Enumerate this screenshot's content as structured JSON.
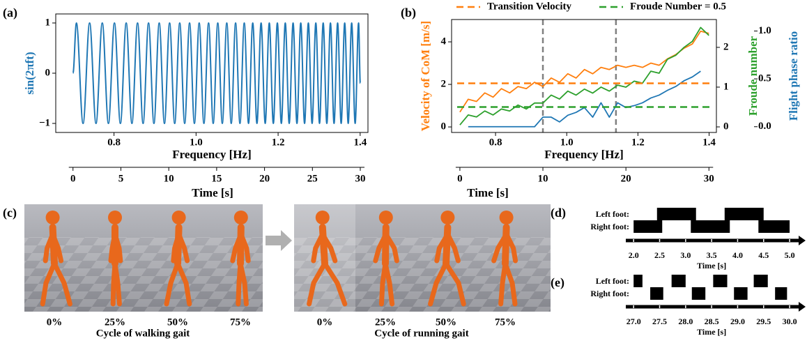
{
  "panel_labels": [
    "(a)",
    "(b)",
    "(c)",
    "(d)",
    "(e)"
  ],
  "gait_frames": [
    {
      "labels": [
        "0%",
        "25%",
        "50%",
        "75%"
      ],
      "caption": "Cycle of walking gait"
    },
    {
      "labels": [
        "0%",
        "25%",
        "50%",
        "75%"
      ],
      "caption": "Cycle of running gait"
    }
  ],
  "chart_data": [
    {
      "type": "line",
      "smooth": true,
      "xlabel": "Frequency [Hz]",
      "time_label": "Time [s]",
      "ylabel": "sin(2πft)",
      "ylabel_color": "#1f77b4",
      "xlim": [
        -1.8,
        30.8
      ],
      "xticks": [
        0,
        5,
        10,
        15,
        20,
        25,
        30
      ],
      "freq_lim": [
        0.658,
        1.419
      ],
      "freq_ticks": [
        0.8,
        {
          "value": 1.0,
          "label": "1.0"
        },
        1.2,
        1.4
      ],
      "ylim": [
        -1.18,
        1.18
      ],
      "yticks": [
        {
          "value": -1,
          "label": "−1"
        },
        0,
        1
      ],
      "x": [
        0,
        0.355,
        1.053,
        1.736,
        2.404,
        3.058,
        3.7,
        4.33,
        4.949,
        5.557,
        6.154,
        6.742,
        7.321,
        7.891,
        8.452,
        9.005,
        9.551,
        10.089,
        10.62,
        11.144,
        11.662,
        12.173,
        12.678,
        13.177,
        13.671,
        14.159,
        14.641,
        15.119,
        15.591,
        16.059,
        16.522,
        16.98,
        17.434,
        17.884,
        18.329,
        18.771,
        19.208,
        19.642,
        20.071,
        20.498,
        20.92,
        21.339,
        21.755,
        22.167,
        22.577,
        22.982,
        23.385,
        23.785,
        24.182,
        24.576,
        24.968,
        25.356,
        25.742,
        26.125,
        26.505,
        26.883,
        27.259,
        27.632,
        28.002,
        28.371,
        28.737,
        29.1,
        29.462,
        29.821,
        30
      ],
      "series": [
        {
          "color": "#1f77b4",
          "values": [
            0,
            1,
            -1,
            1,
            -1,
            1,
            -1,
            1,
            -1,
            1,
            -1,
            1,
            -1,
            1,
            -1,
            1,
            -1,
            1,
            -1,
            1,
            -1,
            1,
            -1,
            1,
            -1,
            1,
            -1,
            1,
            -1,
            1,
            -1,
            1,
            -1,
            1,
            -1,
            1,
            -1,
            1,
            -1,
            1,
            -1,
            1,
            -1,
            1,
            -1,
            1,
            -1,
            1,
            -1,
            1,
            -1,
            1,
            -1,
            1,
            -1,
            1,
            -1,
            1,
            -1,
            1,
            -1,
            1,
            -1,
            1,
            -0.2
          ]
        }
      ]
    },
    {
      "type": "line",
      "smooth": false,
      "xlabel": "Frequency [Hz]",
      "time_label": "Time [s]",
      "xlim": [
        -1.0,
        30.9
      ],
      "xticks": [
        0,
        10,
        20,
        30
      ],
      "freq_lim": [
        0.6765,
        1.4205
      ],
      "freq_ticks": [
        0.8,
        {
          "value": 1.0,
          "label": "1.0"
        },
        1.2,
        1.4
      ],
      "ylabel": "Velocity of CoM [m/s]",
      "ylabel_color": "#ff7f0e",
      "ylim": [
        -0.26,
        5.05
      ],
      "yticks": [
        0,
        2,
        4
      ],
      "y2label": "Froude number",
      "y2label_color": "#2ca02c",
      "y2lim": [
        -0.14,
        2.7
      ],
      "y2ticks": [
        0,
        1,
        2
      ],
      "y3label": "Flight phase ratio",
      "y3label_color": "#1f77b4",
      "y3lim": [
        -0.06,
        1.12
      ],
      "y3ticks": [
        {
          "value": 0.0,
          "label": "0.0"
        },
        0.5,
        {
          "value": 1.0,
          "label": "1.0"
        }
      ],
      "x": [
        0,
        1,
        2,
        3,
        4,
        5,
        6,
        7,
        8,
        9,
        10,
        11,
        12,
        13,
        14,
        15,
        16,
        17,
        18,
        19,
        20,
        21,
        22,
        23,
        24,
        25,
        26,
        27,
        28,
        29,
        30
      ],
      "series": [
        {
          "color": "#ff7f0e",
          "axis": "y",
          "values": [
            0.7,
            1.3,
            1.2,
            1.6,
            1.4,
            1.8,
            1.6,
            1.9,
            1.8,
            2.1,
            1.9,
            2.3,
            2.1,
            2.5,
            2.3,
            2.7,
            2.5,
            2.8,
            2.7,
            2.9,
            2.8,
            2.9,
            2.8,
            3.0,
            2.9,
            3.2,
            3.4,
            3.7,
            3.9,
            4.5,
            4.4
          ]
        },
        {
          "color": "#2ca02c",
          "axis": "y2",
          "values": [
            0.05,
            0.3,
            0.25,
            0.4,
            0.3,
            0.45,
            0.4,
            0.55,
            0.45,
            0.6,
            0.6,
            0.8,
            0.7,
            0.9,
            0.8,
            0.95,
            0.85,
            1.0,
            0.9,
            1.05,
            1.0,
            1.15,
            1.1,
            1.4,
            1.35,
            1.7,
            1.8,
            2.0,
            2.15,
            2.5,
            2.3
          ]
        },
        {
          "color": "#1f77b4",
          "axis": "y3",
          "values": [
            null,
            0,
            0,
            0,
            0,
            0,
            0,
            0,
            0,
            0,
            0.1,
            0.1,
            0.05,
            0.12,
            0.15,
            0.2,
            0.1,
            0.25,
            0.1,
            0.25,
            0.2,
            0.22,
            0.25,
            0.3,
            0.33,
            0.38,
            0.42,
            0.48,
            0.52,
            0.58,
            null
          ]
        }
      ],
      "hlines": [
        {
          "name": "Transition Velocity",
          "value": 2.05,
          "axis": "y",
          "color": "#ff7f0e"
        },
        {
          "name": "Froude Number = 0.5",
          "value": 0.5,
          "axis": "y2",
          "color": "#2ca02c"
        }
      ],
      "vlines": [
        10,
        18.8
      ],
      "vline_color": "#808080"
    },
    {
      "type": "timeline",
      "xlabel": "Time [s]",
      "xlim": [
        1.85,
        5.2
      ],
      "xticks": [
        {
          "value": 2.0,
          "label": "2.0"
        },
        2.5,
        {
          "value": 3.0,
          "label": "3.0"
        },
        3.5,
        {
          "value": 4.0,
          "label": "4.0"
        },
        4.5,
        {
          "value": 5.0,
          "label": "5.0"
        }
      ],
      "rows": [
        {
          "name": "Left foot:",
          "intervals": [
            [
              2.45,
              3.2
            ],
            [
              3.75,
              4.5
            ]
          ]
        },
        {
          "name": "Right foot:",
          "intervals": [
            [
              2.0,
              2.55
            ],
            [
              3.1,
              3.85
            ],
            [
              4.4,
              5.0
            ]
          ]
        }
      ]
    },
    {
      "type": "timeline",
      "xlabel": "Time [s]",
      "xlim": [
        26.85,
        30.2
      ],
      "xticks": [
        {
          "value": 27.0,
          "label": "27.0"
        },
        27.5,
        {
          "value": 28.0,
          "label": "28.0"
        },
        28.5,
        {
          "value": 29.0,
          "label": "29.0"
        },
        29.5,
        {
          "value": 30.0,
          "label": "30.0"
        }
      ],
      "rows": [
        {
          "name": "Left foot:",
          "intervals": [
            [
              27.0,
              27.17
            ],
            [
              27.73,
              28.0
            ],
            [
              28.53,
              28.8
            ],
            [
              29.31,
              29.58
            ]
          ]
        },
        {
          "name": "Right foot:",
          "intervals": [
            [
              27.32,
              27.57
            ],
            [
              28.12,
              28.38
            ],
            [
              28.93,
              29.19
            ],
            [
              29.72,
              29.95
            ]
          ]
        }
      ]
    }
  ]
}
